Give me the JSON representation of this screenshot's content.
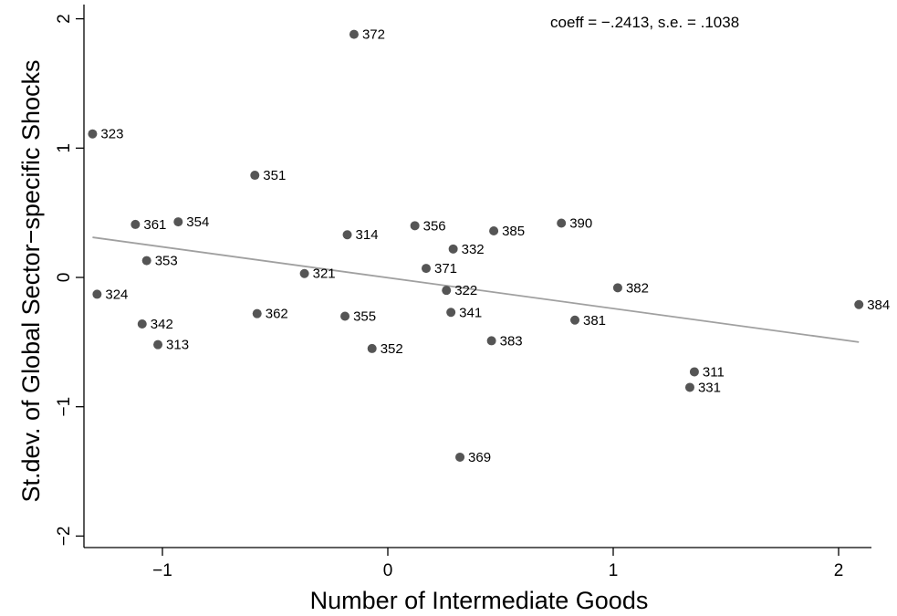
{
  "chart_data": {
    "type": "scatter",
    "xlabel": "Number of Intermediate Goods",
    "ylabel": "St.dev. of Global Sector−specific Shocks",
    "annotation": "coeff = −.2413,  s.e. = .1038",
    "xlim": [
      -1.35,
      2.15
    ],
    "ylim": [
      -2.15,
      2.1
    ],
    "x_ticks": [
      -1,
      0,
      1,
      2
    ],
    "x_tick_labels": [
      "−1",
      "0",
      "1",
      "2"
    ],
    "y_ticks": [
      -2,
      -1,
      0,
      1,
      2
    ],
    "y_tick_labels": [
      "−2",
      "−1",
      "0",
      "1",
      "2"
    ],
    "grid": false,
    "colors": {
      "points": "#555555",
      "fit_line": "#a0a0a0",
      "axis": "#000000"
    },
    "fit_line": {
      "x": [
        -1.31,
        2.09
      ],
      "y": [
        0.31,
        -0.5
      ]
    },
    "points": [
      {
        "label": "372",
        "x": -0.15,
        "y": 1.88
      },
      {
        "label": "323",
        "x": -1.31,
        "y": 1.11
      },
      {
        "label": "351",
        "x": -0.59,
        "y": 0.79
      },
      {
        "label": "361",
        "x": -1.12,
        "y": 0.41
      },
      {
        "label": "354",
        "x": -0.93,
        "y": 0.43
      },
      {
        "label": "314",
        "x": -0.18,
        "y": 0.33
      },
      {
        "label": "356",
        "x": 0.12,
        "y": 0.4
      },
      {
        "label": "385",
        "x": 0.47,
        "y": 0.36
      },
      {
        "label": "390",
        "x": 0.77,
        "y": 0.42
      },
      {
        "label": "332",
        "x": 0.29,
        "y": 0.22
      },
      {
        "label": "353",
        "x": -1.07,
        "y": 0.13
      },
      {
        "label": "371",
        "x": 0.17,
        "y": 0.07
      },
      {
        "label": "321",
        "x": -0.37,
        "y": 0.03
      },
      {
        "label": "324",
        "x": -1.29,
        "y": -0.13
      },
      {
        "label": "322",
        "x": 0.26,
        "y": -0.1
      },
      {
        "label": "382",
        "x": 1.02,
        "y": -0.08
      },
      {
        "label": "384",
        "x": 2.09,
        "y": -0.21
      },
      {
        "label": "362",
        "x": -0.58,
        "y": -0.28
      },
      {
        "label": "355",
        "x": -0.19,
        "y": -0.3
      },
      {
        "label": "341",
        "x": 0.28,
        "y": -0.27
      },
      {
        "label": "381",
        "x": 0.83,
        "y": -0.33
      },
      {
        "label": "342",
        "x": -1.09,
        "y": -0.36
      },
      {
        "label": "313",
        "x": -1.02,
        "y": -0.52
      },
      {
        "label": "352",
        "x": -0.07,
        "y": -0.55
      },
      {
        "label": "383",
        "x": 0.46,
        "y": -0.49
      },
      {
        "label": "311",
        "x": 1.36,
        "y": -0.73
      },
      {
        "label": "331",
        "x": 1.34,
        "y": -0.85
      },
      {
        "label": "369",
        "x": 0.32,
        "y": -1.39
      }
    ]
  }
}
